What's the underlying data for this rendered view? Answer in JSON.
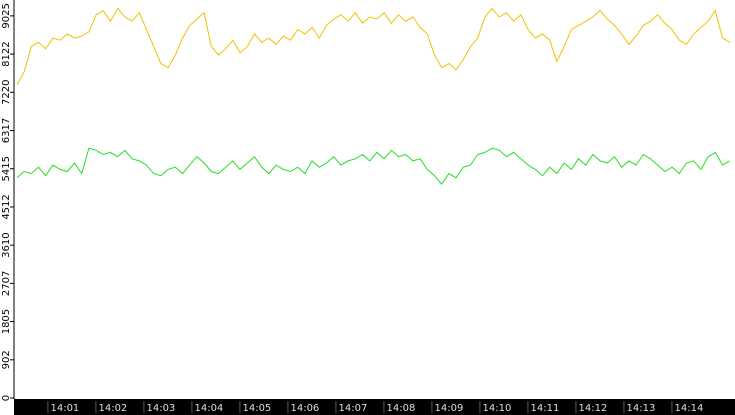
{
  "chart_data": {
    "type": "line",
    "x": [
      0,
      0.15,
      0.3,
      0.45,
      0.6,
      0.75,
      0.9,
      1.05,
      1.2,
      1.35,
      1.5,
      1.65,
      1.8,
      1.95,
      2.1,
      2.25,
      2.4,
      2.55,
      2.7,
      2.85,
      3,
      3.15,
      3.3,
      3.45,
      3.6,
      3.75,
      3.9,
      4.05,
      4.2,
      4.35,
      4.5,
      4.65,
      4.8,
      4.95,
      5.1,
      5.25,
      5.4,
      5.55,
      5.7,
      5.85,
      6,
      6.15,
      6.3,
      6.45,
      6.6,
      6.75,
      6.9,
      7.05,
      7.2,
      7.35,
      7.5,
      7.65,
      7.8,
      7.95,
      8.1,
      8.25,
      8.4,
      8.55,
      8.7,
      8.85,
      9,
      9.15,
      9.3,
      9.45,
      9.6,
      9.75,
      9.9,
      10.05,
      10.2,
      10.35,
      10.5,
      10.65,
      10.8,
      10.95,
      11.1,
      11.25,
      11.4,
      11.55,
      11.7,
      11.85,
      12,
      12.15,
      12.3,
      12.45,
      12.6,
      12.75,
      12.9,
      13.05,
      13.2,
      13.35,
      13.5,
      13.65,
      13.8,
      13.95,
      14.1,
      14.25,
      14.4,
      14.55,
      14.7,
      14.85
    ],
    "series": [
      {
        "color": "#f2c200",
        "values": [
          7400,
          7700,
          8300,
          8400,
          8250,
          8500,
          8450,
          8600,
          8500,
          8550,
          8650,
          9050,
          9150,
          8900,
          9200,
          9000,
          8900,
          9100,
          8700,
          8300,
          7900,
          7800,
          8100,
          8500,
          8800,
          8950,
          9100,
          8300,
          8100,
          8250,
          8450,
          8150,
          8300,
          8600,
          8400,
          8500,
          8350,
          8550,
          8450,
          8700,
          8600,
          8750,
          8500,
          8800,
          8950,
          9050,
          8900,
          9100,
          8850,
          9000,
          8950,
          9100,
          8850,
          9050,
          8900,
          9000,
          8750,
          8600,
          8100,
          7800,
          7900,
          7750,
          8000,
          8300,
          8500,
          9000,
          9200,
          9000,
          9100,
          8900,
          9050,
          8700,
          8500,
          8600,
          8450,
          7950,
          8300,
          8700,
          8800,
          8900,
          9000,
          9150,
          8950,
          8800,
          8600,
          8350,
          8550,
          8800,
          8900,
          9050,
          8850,
          8700,
          8450,
          8350,
          8600,
          8750,
          8900,
          9150,
          8500,
          8400
        ]
      },
      {
        "color": "#22e022",
        "values": [
          5200,
          5350,
          5300,
          5450,
          5250,
          5500,
          5400,
          5350,
          5550,
          5300,
          5900,
          5850,
          5750,
          5800,
          5700,
          5850,
          5650,
          5600,
          5500,
          5300,
          5250,
          5400,
          5450,
          5300,
          5500,
          5700,
          5550,
          5350,
          5300,
          5450,
          5600,
          5400,
          5550,
          5700,
          5450,
          5300,
          5500,
          5400,
          5350,
          5450,
          5300,
          5600,
          5450,
          5550,
          5700,
          5500,
          5600,
          5650,
          5750,
          5600,
          5800,
          5650,
          5850,
          5700,
          5750,
          5600,
          5650,
          5400,
          5250,
          5050,
          5300,
          5200,
          5450,
          5500,
          5750,
          5800,
          5900,
          5850,
          5700,
          5800,
          5650,
          5500,
          5400,
          5250,
          5450,
          5300,
          5550,
          5400,
          5650,
          5500,
          5750,
          5600,
          5550,
          5700,
          5450,
          5600,
          5500,
          5750,
          5650,
          5500,
          5350,
          5450,
          5300,
          5550,
          5600,
          5400,
          5700,
          5800,
          5500,
          5600
        ]
      }
    ],
    "xlim": [
      -0.06,
      14.96
    ],
    "xticks": [
      {
        "value": 1,
        "label": "14:01"
      },
      {
        "value": 2,
        "label": "14:02"
      },
      {
        "value": 3,
        "label": "14:03"
      },
      {
        "value": 4,
        "label": "14:04"
      },
      {
        "value": 5,
        "label": "14:05"
      },
      {
        "value": 6,
        "label": "14:06"
      },
      {
        "value": 7,
        "label": "14:07"
      },
      {
        "value": 8,
        "label": "14:08"
      },
      {
        "value": 9,
        "label": "14:09"
      },
      {
        "value": 10,
        "label": "14:10"
      },
      {
        "value": 11,
        "label": "14:11"
      },
      {
        "value": 12,
        "label": "14:12"
      },
      {
        "value": 13,
        "label": "14:13"
      },
      {
        "value": 14,
        "label": "14:14"
      }
    ],
    "ylim": [
      0,
      9400
    ],
    "yticks": [
      0,
      902,
      1805,
      2707,
      3610,
      4512,
      5415,
      6317,
      7220,
      8122,
      9025
    ]
  }
}
